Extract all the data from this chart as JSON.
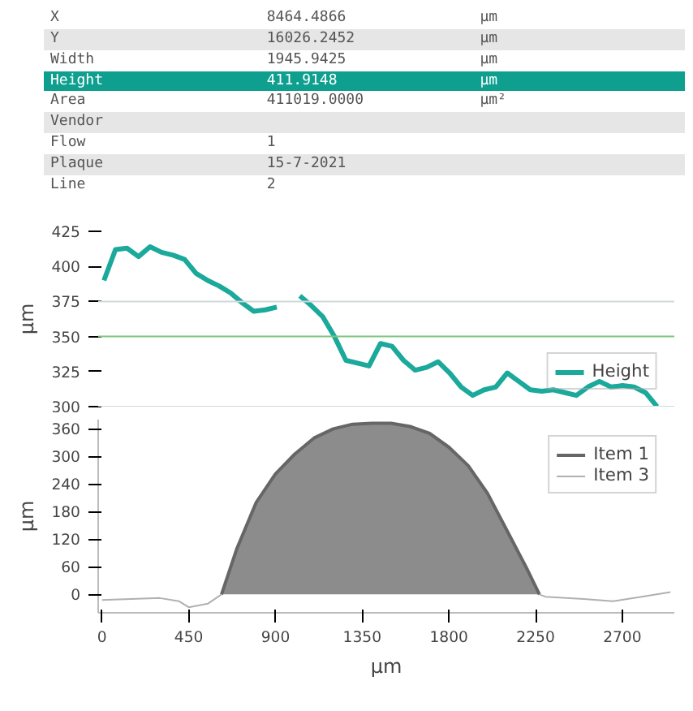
{
  "chart_data": [
    {
      "type": "other",
      "categories": [
        "X",
        "Y",
        "Width",
        "Height",
        "Area",
        "Vendor",
        "Flow",
        "Plaque",
        "Line"
      ],
      "cell_labels": [
        [
          "8464.4866",
          "µm"
        ],
        [
          "16026.2452",
          "µm"
        ],
        [
          "1945.9425",
          "µm"
        ],
        [
          "411.9148",
          "µm"
        ],
        [
          "411019.0000",
          "µm²"
        ],
        [
          null,
          null
        ],
        [
          "1",
          null
        ],
        [
          "15-7-2021",
          null
        ],
        [
          "2",
          null
        ]
      ],
      "colors": [
        "#ffffff",
        "#e6e6e6",
        "#ffffff",
        "#0e9f8f",
        "#ffffff",
        "#e6e6e6",
        "#ffffff",
        "#e6e6e6",
        "#ffffff"
      ]
    },
    {
      "type": "line",
      "ylabel": "µm",
      "categories": [
        null,
        null,
        null,
        null,
        null,
        null,
        null,
        null,
        null,
        null,
        null,
        null,
        null,
        null,
        null,
        null,
        null,
        null,
        null,
        null,
        null,
        null,
        null,
        null,
        null,
        null,
        null,
        null,
        null,
        null,
        null,
        null,
        null,
        null,
        null,
        null,
        null,
        null,
        null,
        null,
        null,
        null,
        null,
        null,
        null,
        null,
        null,
        null,
        null,
        null
      ],
      "series": [
        {
          "name": "Height",
          "color": "#1aa99a",
          "values": [
            390,
            412,
            413,
            407,
            414,
            410,
            408,
            405,
            395,
            390,
            386,
            381,
            374,
            368,
            369,
            371,
            null,
            null,
            null,
            null,
            null,
            null,
            null,
            null,
            null,
            null,
            null,
            null,
            null,
            null,
            null,
            null,
            null,
            null,
            null,
            null,
            null,
            null,
            null,
            null,
            null,
            null,
            null,
            null,
            null,
            null,
            null,
            null,
            null,
            null
          ]
        },
        {
          "color": "#1aa99a",
          "values": [
            null,
            null,
            null,
            null,
            null,
            null,
            null,
            null,
            null,
            null,
            null,
            null,
            null,
            null,
            null,
            null,
            null,
            379,
            372,
            364,
            350,
            333,
            331,
            329,
            345,
            343,
            333,
            326,
            328,
            332,
            324,
            314,
            308,
            312,
            314,
            324,
            318,
            312,
            311,
            312,
            310,
            308,
            314,
            318,
            314,
            315,
            314,
            310,
            300,
            null
          ]
        }
      ],
      "ylim": [
        300,
        425
      ],
      "yticks": [
        300,
        325,
        350,
        375,
        400,
        425
      ],
      "tick_labels": "y",
      "legend": "bottom right",
      "ref_lines": [
        {
          "axis": "y",
          "value": 375,
          "color": "#d0d8d8"
        },
        {
          "axis": "y",
          "value": 350,
          "color": "#7cc47c"
        },
        {
          "axis": "y",
          "value": 300,
          "color": "#d0d8d8"
        }
      ]
    },
    {
      "type": "line",
      "xlabel": "µm",
      "ylabel": "µm",
      "series": [
        {
          "name": "Item 1",
          "type": "area",
          "color": "#8c8c8c",
          "x": [
            620,
            700,
            800,
            900,
            1000,
            1100,
            1200,
            1300,
            1400,
            1500,
            1600,
            1700,
            1800,
            1900,
            2000,
            2100,
            2200,
            2270
          ],
          "values": [
            0,
            100,
            200,
            262,
            305,
            340,
            360,
            370,
            372,
            372,
            365,
            350,
            320,
            280,
            220,
            140,
            60,
            0
          ]
        },
        {
          "name": "Item 3",
          "color": "#b0b0b0",
          "x": [
            0,
            150,
            300,
            400,
            450,
            550,
            620,
            1400,
            2270,
            2300,
            2500,
            2650,
            2800,
            2950
          ],
          "values": [
            -12,
            -10,
            -8,
            -15,
            -28,
            -20,
            0,
            null,
            0,
            -5,
            -10,
            -15,
            -5,
            5
          ]
        }
      ],
      "xlim": [
        -20,
        2970
      ],
      "xticks": [
        0,
        450,
        900,
        1350,
        1800,
        2250,
        2700
      ],
      "ylim": [
        -40,
        380
      ],
      "yticks": [
        0,
        60,
        120,
        180,
        240,
        300,
        360
      ],
      "legend": "top right"
    }
  ]
}
